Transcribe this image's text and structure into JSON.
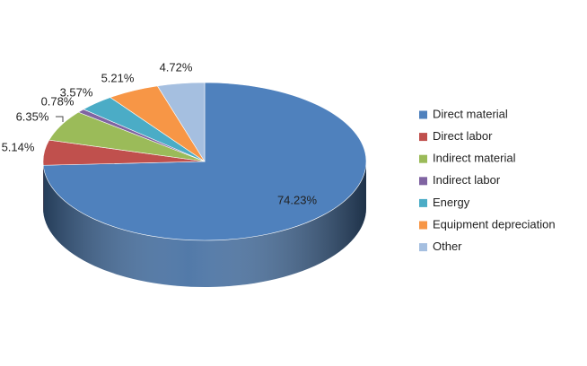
{
  "chart_data": {
    "type": "pie3d",
    "categories": [
      "Direct material",
      "Direct labor",
      "Indirect material",
      "Indirect labor",
      "Energy",
      "Equipment depreciation",
      "Other"
    ],
    "values": [
      74.23,
      5.14,
      6.35,
      0.78,
      3.57,
      5.21,
      4.72
    ],
    "value_labels": [
      "74.23%",
      "5.14%",
      "6.35%",
      "0.78%",
      "3.57%",
      "5.21%",
      "4.72%"
    ],
    "colors": [
      "#4f81bd",
      "#c0504d",
      "#9bbb59",
      "#8064a2",
      "#4bacc6",
      "#f79646",
      "#a5bfe0"
    ],
    "legend": "right"
  }
}
